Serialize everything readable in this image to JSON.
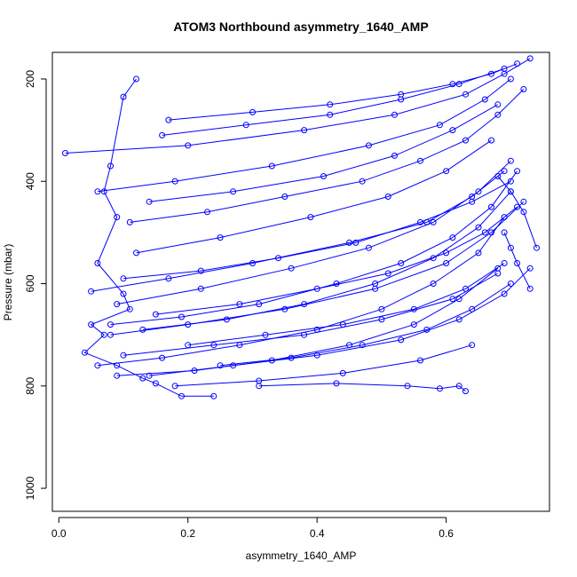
{
  "chart_data": {
    "type": "line",
    "title": "ATOM3 Northbound asymmetry_1640_AMP",
    "xlabel": "asymmetry_1640_AMP",
    "ylabel": "Pressure (mbar)",
    "xlim": [
      -0.01,
      0.76
    ],
    "ylim": [
      1045,
      148
    ],
    "y_reversed": true,
    "x_ticks": [
      0.0,
      0.2,
      0.4,
      0.6
    ],
    "x_tick_labels": [
      "0.0",
      "0.2",
      "0.4",
      "0.6"
    ],
    "y_ticks": [
      200,
      400,
      600,
      800,
      1000
    ],
    "y_tick_labels": [
      "200",
      "400",
      "600",
      "800",
      "1000"
    ],
    "grid": false,
    "legend": "none",
    "series_color": "#0000ff",
    "marker": "open-circle",
    "series": [
      {
        "x": [
          0.12,
          0.1,
          0.08,
          0.07,
          0.09,
          0.06,
          0.1,
          0.11,
          0.05,
          0.07,
          0.04,
          0.09,
          0.13,
          0.15,
          0.19,
          0.24
        ],
        "y": [
          200,
          235,
          370,
          420,
          470,
          560,
          620,
          650,
          680,
          700,
          735,
          760,
          785,
          795,
          820,
          820
        ]
      },
      {
        "x": [
          0.01,
          0.2,
          0.38,
          0.52,
          0.63,
          0.69,
          0.73
        ],
        "y": [
          345,
          330,
          300,
          270,
          230,
          190,
          160
        ]
      },
      {
        "x": [
          0.06,
          0.18,
          0.33,
          0.48,
          0.59,
          0.66,
          0.7
        ],
        "y": [
          420,
          400,
          370,
          330,
          290,
          240,
          200
        ]
      },
      {
        "x": [
          0.05,
          0.17,
          0.3,
          0.45,
          0.57,
          0.64,
          0.69
        ],
        "y": [
          615,
          590,
          560,
          520,
          480,
          430,
          380
        ]
      },
      {
        "x": [
          0.08,
          0.2,
          0.35,
          0.49,
          0.6,
          0.67,
          0.72
        ],
        "y": [
          700,
          680,
          650,
          610,
          560,
          500,
          440
        ]
      },
      {
        "x": [
          0.1,
          0.24,
          0.38,
          0.5,
          0.61,
          0.68
        ],
        "y": [
          740,
          720,
          700,
          670,
          630,
          580
        ]
      },
      {
        "x": [
          0.14,
          0.27,
          0.4,
          0.53,
          0.62,
          0.69,
          0.73
        ],
        "y": [
          780,
          760,
          740,
          710,
          670,
          620,
          570
        ]
      },
      {
        "x": [
          0.18,
          0.31,
          0.44,
          0.56,
          0.64
        ],
        "y": [
          800,
          790,
          775,
          750,
          720
        ]
      },
      {
        "x": [
          0.31,
          0.43,
          0.54,
          0.59,
          0.62,
          0.63
        ],
        "y": [
          800,
          795,
          800,
          805,
          800,
          810
        ]
      },
      {
        "x": [
          0.09,
          0.22,
          0.36,
          0.48,
          0.58,
          0.65,
          0.7
        ],
        "y": [
          640,
          610,
          570,
          530,
          480,
          420,
          360
        ]
      },
      {
        "x": [
          0.12,
          0.25,
          0.39,
          0.51,
          0.6,
          0.67
        ],
        "y": [
          540,
          510,
          470,
          430,
          380,
          320
        ]
      },
      {
        "x": [
          0.14,
          0.27,
          0.41,
          0.52,
          0.61,
          0.68
        ],
        "y": [
          440,
          420,
          390,
          350,
          300,
          250
        ]
      },
      {
        "x": [
          0.16,
          0.29,
          0.42,
          0.53,
          0.62,
          0.69
        ],
        "y": [
          310,
          290,
          270,
          240,
          210,
          180
        ]
      },
      {
        "x": [
          0.1,
          0.22,
          0.34,
          0.46,
          0.56,
          0.64,
          0.7
        ],
        "y": [
          590,
          575,
          550,
          520,
          480,
          440,
          400
        ]
      },
      {
        "x": [
          0.15,
          0.28,
          0.4,
          0.51,
          0.6,
          0.66,
          0.71
        ],
        "y": [
          660,
          640,
          610,
          580,
          540,
          500,
          450
        ]
      },
      {
        "x": [
          0.2,
          0.32,
          0.44,
          0.55,
          0.63,
          0.69
        ],
        "y": [
          720,
          700,
          680,
          650,
          610,
          560
        ]
      },
      {
        "x": [
          0.25,
          0.36,
          0.47,
          0.57,
          0.64,
          0.7
        ],
        "y": [
          760,
          745,
          720,
          690,
          650,
          600
        ]
      },
      {
        "x": [
          0.06,
          0.16,
          0.28,
          0.4,
          0.5,
          0.58,
          0.65,
          0.69
        ],
        "y": [
          760,
          745,
          720,
          690,
          650,
          600,
          540,
          470
        ]
      },
      {
        "x": [
          0.08,
          0.19,
          0.31,
          0.43,
          0.53,
          0.61,
          0.67,
          0.71
        ],
        "y": [
          680,
          665,
          640,
          600,
          560,
          510,
          450,
          380
        ]
      },
      {
        "x": [
          0.11,
          0.23,
          0.35,
          0.47,
          0.56,
          0.63,
          0.68,
          0.72
        ],
        "y": [
          480,
          460,
          430,
          400,
          360,
          320,
          270,
          220
        ]
      },
      {
        "x": [
          0.69,
          0.7,
          0.71,
          0.73
        ],
        "y": [
          500,
          530,
          560,
          610
        ]
      },
      {
        "x": [
          0.68,
          0.7,
          0.72,
          0.74
        ],
        "y": [
          390,
          420,
          460,
          530
        ]
      },
      {
        "x": [
          0.09,
          0.21,
          0.33,
          0.45,
          0.55,
          0.62,
          0.68
        ],
        "y": [
          780,
          770,
          750,
          720,
          680,
          630,
          570
        ]
      },
      {
        "x": [
          0.17,
          0.3,
          0.42,
          0.53,
          0.61,
          0.67,
          0.71
        ],
        "y": [
          280,
          265,
          250,
          230,
          210,
          190,
          170
        ]
      },
      {
        "x": [
          0.13,
          0.26,
          0.38,
          0.49,
          0.58,
          0.65,
          0.7
        ],
        "y": [
          690,
          670,
          640,
          600,
          550,
          490,
          420
        ]
      }
    ]
  }
}
